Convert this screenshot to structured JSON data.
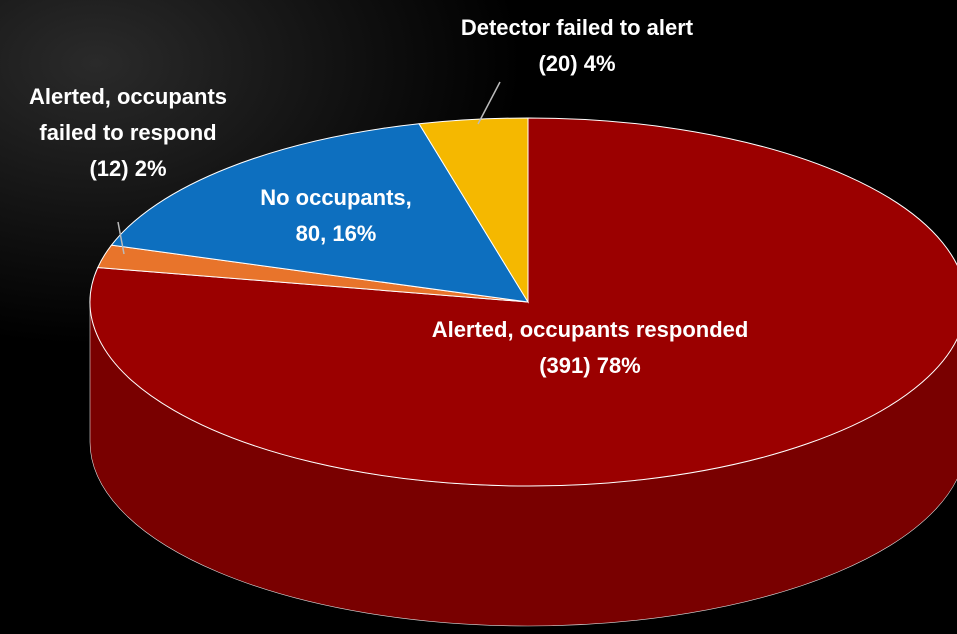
{
  "chart_data": {
    "type": "pie",
    "three_d": true,
    "categories": [
      "Alerted, occupants responded",
      "Alerted, occupants failed to respond",
      "No occupants,",
      "Detector failed to alert"
    ],
    "values": [
      78,
      2,
      16,
      4
    ],
    "value_labels": [
      "(391) 78%",
      "(12) 2%",
      "80, 16%",
      "(20) 4%"
    ],
    "colors": [
      "#9b0000",
      "#e8742b",
      "#0d6fbf",
      "#f5b800"
    ]
  }
}
